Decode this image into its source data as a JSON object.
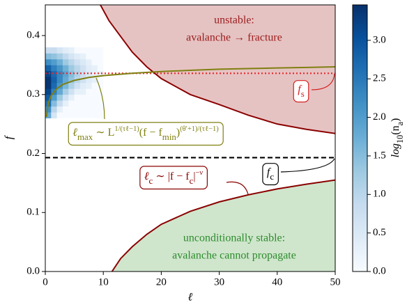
{
  "chart_data": {
    "type": "heatmap",
    "xlabel": "ℓ",
    "ylabel": "f",
    "xlim": [
      0,
      50
    ],
    "ylim": [
      0,
      0.452
    ],
    "xticks": [
      0,
      10,
      20,
      30,
      40,
      50
    ],
    "yticks": [
      {
        "value": 0,
        "label": "0.0"
      },
      {
        "value": 0.1,
        "label": "0.1"
      },
      {
        "value": 0.2,
        "label": "0.2"
      },
      {
        "value": 0.3,
        "label": "0.3"
      },
      {
        "value": 0.4,
        "label": "0.4"
      }
    ],
    "heatmap": {
      "x_edges": [
        0,
        1,
        2,
        3,
        4,
        5,
        6,
        7,
        8,
        9,
        10
      ],
      "y_edges": [
        0.26,
        0.27,
        0.28,
        0.29,
        0.3,
        0.31,
        0.32,
        0.33,
        0.34,
        0.35,
        0.36,
        0.37,
        0.38
      ],
      "values": [
        [
          1.8,
          0.6,
          0,
          0,
          0,
          0,
          0,
          0,
          0,
          0
        ],
        [
          2.2,
          1.0,
          0.3,
          0,
          0,
          0,
          0,
          0,
          0,
          0
        ],
        [
          2.6,
          1.5,
          0.8,
          0.3,
          0,
          0,
          0,
          0,
          0,
          0
        ],
        [
          2.9,
          2.0,
          1.3,
          0.7,
          0.3,
          0,
          0,
          0,
          0,
          0
        ],
        [
          3.2,
          2.4,
          1.8,
          1.2,
          0.7,
          0.3,
          0.3,
          0,
          0,
          0
        ],
        [
          3.4,
          2.7,
          2.1,
          1.6,
          1.1,
          0.7,
          0.4,
          0.3,
          0,
          0
        ],
        [
          3.4,
          2.8,
          2.3,
          1.8,
          1.4,
          1.0,
          0.7,
          0.4,
          0.3,
          0
        ],
        [
          3.2,
          2.7,
          2.3,
          1.9,
          1.5,
          1.1,
          0.8,
          0.5,
          0.3,
          0.3
        ],
        [
          2.8,
          2.4,
          2.1,
          1.7,
          1.3,
          1.0,
          0.7,
          0.4,
          0.3,
          0
        ],
        [
          2.2,
          2.0,
          1.7,
          1.3,
          1.0,
          0.7,
          0.5,
          0.3,
          0,
          0
        ],
        [
          1.5,
          1.4,
          1.2,
          0.9,
          0.6,
          0.4,
          0.3,
          0,
          0,
          0
        ],
        [
          0.8,
          0.8,
          0.6,
          0.4,
          0.3,
          0,
          0,
          0,
          0,
          0
        ]
      ],
      "colormap": [
        "#f7fbff",
        "#deebf7",
        "#c6dbef",
        "#9ecae1",
        "#6baed6",
        "#4292c6",
        "#2171b5",
        "#08519c",
        "#08306b"
      ],
      "clim": [
        0,
        3.46
      ]
    },
    "colorbar": {
      "label": [
        {
          "t": "log"
        },
        {
          "t": "10",
          "sub": true
        },
        {
          "t": "(n"
        },
        {
          "t": "a",
          "sub": true
        },
        {
          "t": ")"
        }
      ],
      "ticks": [
        {
          "value": 0,
          "label": "0.0"
        },
        {
          "value": 0.5,
          "label": "0.5"
        },
        {
          "value": 1,
          "label": "1.0"
        },
        {
          "value": 1.5,
          "label": "1.5"
        },
        {
          "value": 2,
          "label": "2.0"
        },
        {
          "value": 2.5,
          "label": "2.5"
        },
        {
          "value": 3,
          "label": "3.0"
        }
      ]
    },
    "lines": [
      {
        "color": "#8b0000",
        "fill": "#e6c3c3",
        "fill_to": "top",
        "x": [
          9.5,
          11,
          12.5,
          15,
          17.5,
          20,
          25,
          30,
          35,
          40,
          45,
          50
        ],
        "y": [
          0.452,
          0.425,
          0.405,
          0.372,
          0.347,
          0.327,
          0.3,
          0.283,
          0.265,
          0.25,
          0.241,
          0.234
        ]
      },
      {
        "color": "#8b0000",
        "fill": "#cfe6cc",
        "fill_to": "bottom",
        "x": [
          11.5,
          13,
          15,
          17.5,
          20,
          25,
          30,
          35,
          40,
          45,
          50
        ],
        "y": [
          0,
          0.022,
          0.042,
          0.063,
          0.08,
          0.102,
          0.118,
          0.13,
          0.14,
          0.148,
          0.155
        ]
      },
      {
        "color": "#7f7f10",
        "x": [
          0.2,
          0.5,
          1,
          2,
          3,
          5,
          7.5,
          10,
          15,
          20,
          25,
          30,
          35,
          40,
          45,
          50
        ],
        "y": [
          0.262,
          0.285,
          0.298,
          0.31,
          0.317,
          0.324,
          0.329,
          0.332,
          0.336,
          0.339,
          0.341,
          0.343,
          0.344,
          0.345,
          0.346,
          0.347
        ]
      }
    ],
    "hlines": [
      {
        "value": 0.336,
        "color": "#e8282b",
        "style": "dotted"
      },
      {
        "value": 0.193,
        "color": "#000000",
        "style": "dashed"
      }
    ],
    "annotations": [
      {
        "lines": [
          "unstable:",
          "avalanche → fracture"
        ],
        "color": "#9b1c1c"
      },
      {
        "lines": [
          "unconditionally stable:",
          "avalanche cannot propagate"
        ],
        "color": "#2e8b2e"
      },
      {
        "parts": [
          {
            "t": "f"
          },
          {
            "t": "s",
            "sub": true
          }
        ],
        "color": "#d42020",
        "box": "#d42020"
      },
      {
        "parts": [
          {
            "t": "f"
          },
          {
            "t": "c",
            "sub": true
          }
        ],
        "color": "#000000",
        "box": "#000000"
      },
      {
        "parts": [
          {
            "t": "ℓ"
          },
          {
            "t": "c",
            "sub": true
          },
          {
            "t": " ∼ |f − f"
          },
          {
            "t": "c",
            "sub": true
          },
          {
            "t": "|"
          },
          {
            "t": "−ν",
            "sup": true
          }
        ],
        "color": "#8b0000",
        "box": "#8b0000"
      },
      {
        "parts": [
          {
            "t": "ℓ"
          },
          {
            "t": "max",
            "sub": true
          },
          {
            "t": " ∼ L"
          },
          {
            "t": "1/(τℓ−1)",
            "sup": true
          },
          {
            "t": "(f − f"
          },
          {
            "t": "min",
            "sub": true
          },
          {
            "t": ")"
          },
          {
            "t": "(θ′+1)/(τℓ−1)",
            "sup": true
          }
        ],
        "color": "#7f7f10",
        "box": "#7f7f10"
      }
    ]
  }
}
